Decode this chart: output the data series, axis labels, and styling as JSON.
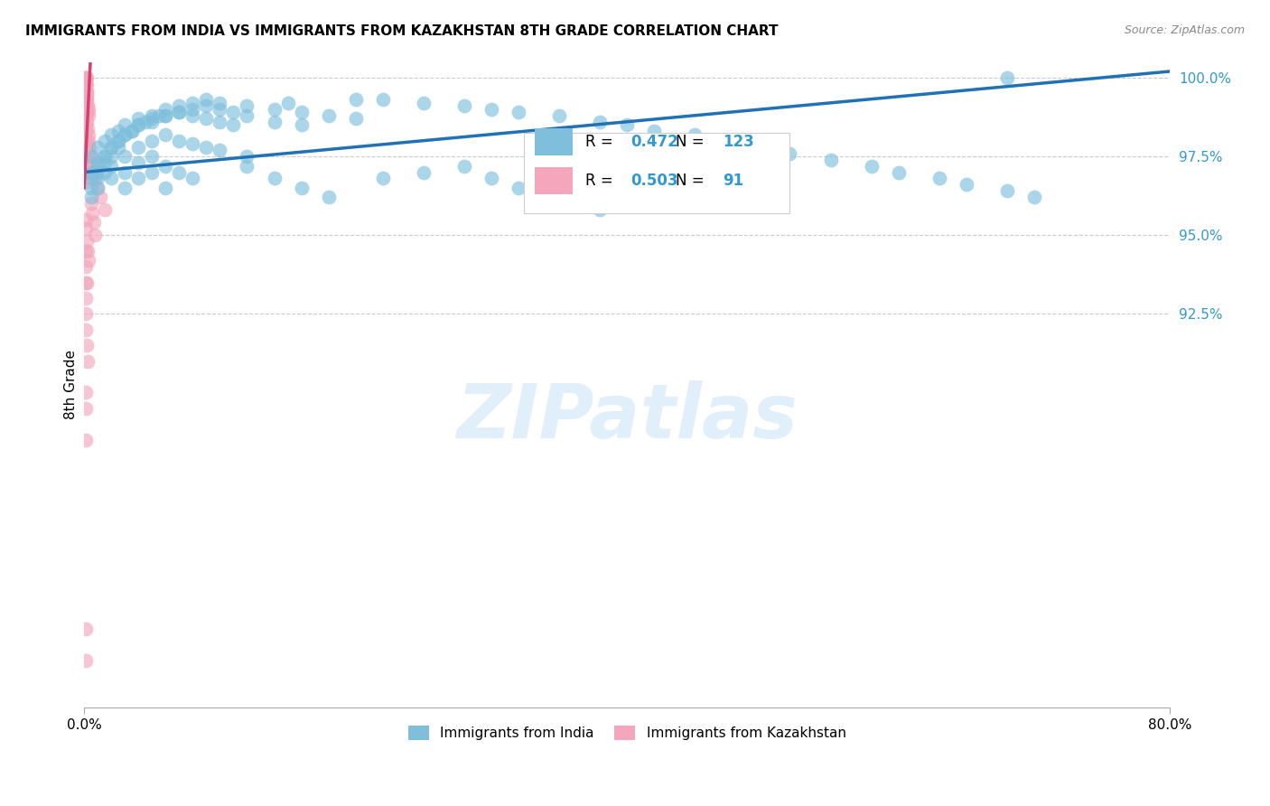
{
  "title": "IMMIGRANTS FROM INDIA VS IMMIGRANTS FROM KAZAKHSTAN 8TH GRADE CORRELATION CHART",
  "source": "Source: ZipAtlas.com",
  "ylabel": "8th Grade",
  "xlim": [
    0.0,
    80.0
  ],
  "ylim": [
    80.0,
    100.5
  ],
  "y_ticks": [
    92.5,
    95.0,
    97.5,
    100.0
  ],
  "y_tick_labels": [
    "92.5%",
    "95.0%",
    "97.5%",
    "100.0%"
  ],
  "x_ticks": [
    0.0,
    80.0
  ],
  "x_tick_labels": [
    "0.0%",
    "80.0%"
  ],
  "legend_india_R": "0.472",
  "legend_india_N": "123",
  "legend_kaz_R": "0.503",
  "legend_kaz_N": "91",
  "color_india": "#7fbfdc",
  "color_kaz": "#f4a7bc",
  "color_india_line": "#2171b5",
  "color_kaz_line": "#d63f6e",
  "watermark": "ZIPatlas",
  "india_x": [
    0.5,
    1.0,
    1.5,
    2.0,
    2.5,
    3.0,
    4.0,
    5.0,
    6.0,
    7.0,
    8.0,
    9.0,
    10.0,
    12.0,
    14.0,
    16.0,
    18.0,
    20.0,
    1.0,
    1.5,
    2.0,
    2.5,
    3.0,
    3.5,
    4.0,
    5.0,
    6.0,
    7.0,
    8.0,
    9.0,
    10.0,
    11.0,
    12.0,
    14.0,
    16.0,
    0.5,
    1.0,
    1.5,
    2.0,
    2.5,
    3.0,
    3.5,
    4.0,
    4.5,
    5.0,
    5.5,
    6.0,
    7.0,
    8.0,
    9.0,
    10.0,
    11.0,
    0.5,
    1.0,
    1.5,
    2.0,
    2.5,
    3.0,
    4.0,
    5.0,
    6.0,
    7.0,
    8.0,
    9.0,
    10.0,
    12.0,
    0.5,
    1.0,
    1.5,
    2.0,
    3.0,
    4.0,
    5.0,
    6.0,
    7.0,
    8.0,
    0.5,
    1.0,
    2.0,
    3.0,
    4.0,
    5.0,
    6.0,
    15.0,
    20.0,
    22.0,
    25.0,
    28.0,
    30.0,
    32.0,
    35.0,
    38.0,
    40.0,
    42.0,
    45.0,
    48.0,
    50.0,
    52.0,
    55.0,
    58.0,
    60.0,
    63.0,
    65.0,
    68.0,
    70.0,
    22.0,
    25.0,
    28.0,
    30.0,
    32.0,
    35.0,
    38.0,
    12.0,
    14.0,
    16.0,
    18.0,
    68.0
  ],
  "india_y": [
    97.5,
    97.8,
    98.0,
    98.2,
    98.3,
    98.5,
    98.7,
    98.8,
    99.0,
    99.1,
    99.2,
    99.3,
    99.2,
    99.1,
    99.0,
    98.9,
    98.8,
    98.7,
    97.2,
    97.5,
    97.8,
    98.0,
    98.2,
    98.3,
    98.5,
    98.6,
    98.8,
    98.9,
    99.0,
    99.1,
    99.0,
    98.9,
    98.8,
    98.6,
    98.5,
    97.0,
    97.3,
    97.5,
    97.8,
    98.0,
    98.2,
    98.3,
    98.5,
    98.6,
    98.7,
    98.8,
    98.8,
    98.9,
    98.8,
    98.7,
    98.6,
    98.5,
    96.8,
    97.0,
    97.3,
    97.5,
    97.8,
    97.5,
    97.8,
    98.0,
    98.2,
    98.0,
    97.9,
    97.8,
    97.7,
    97.5,
    96.5,
    96.8,
    97.0,
    97.2,
    97.0,
    97.3,
    97.5,
    97.2,
    97.0,
    96.8,
    96.2,
    96.5,
    96.8,
    96.5,
    96.8,
    97.0,
    96.5,
    99.2,
    99.3,
    99.3,
    99.2,
    99.1,
    99.0,
    98.9,
    98.8,
    98.6,
    98.5,
    98.3,
    98.2,
    98.0,
    97.8,
    97.6,
    97.4,
    97.2,
    97.0,
    96.8,
    96.6,
    96.4,
    96.2,
    96.8,
    97.0,
    97.2,
    96.8,
    96.5,
    96.2,
    95.8,
    97.2,
    96.8,
    96.5,
    96.2,
    100.0
  ],
  "kaz_x": [
    0.1,
    0.1,
    0.1,
    0.1,
    0.15,
    0.15,
    0.15,
    0.2,
    0.2,
    0.2,
    0.2,
    0.2,
    0.1,
    0.1,
    0.1,
    0.15,
    0.15,
    0.2,
    0.2,
    0.25,
    0.25,
    0.3,
    0.3,
    0.1,
    0.1,
    0.15,
    0.2,
    0.25,
    0.3,
    0.35,
    0.4,
    0.1,
    0.15,
    0.2,
    0.25,
    0.3,
    0.35,
    0.1,
    0.15,
    0.2,
    0.25,
    0.1,
    0.15,
    0.2,
    0.5,
    0.6,
    0.7,
    0.8,
    1.0,
    1.2,
    1.5,
    0.5,
    0.6,
    0.7,
    0.8,
    0.1,
    0.15,
    0.2,
    0.25,
    0.3,
    0.1,
    0.15,
    0.2,
    0.1,
    0.15,
    0.1,
    0.15,
    0.2,
    0.25,
    0.1,
    0.15,
    0.1,
    0.1,
    0.1
  ],
  "kaz_y": [
    100.0,
    100.0,
    99.8,
    99.6,
    100.0,
    99.8,
    99.6,
    100.0,
    99.8,
    99.6,
    99.4,
    99.2,
    99.5,
    99.3,
    99.1,
    99.5,
    99.3,
    99.5,
    99.3,
    99.1,
    98.9,
    99.0,
    98.8,
    99.0,
    98.8,
    98.8,
    98.6,
    98.4,
    98.2,
    98.0,
    97.8,
    98.5,
    98.3,
    98.0,
    97.8,
    97.5,
    97.3,
    97.8,
    97.5,
    97.2,
    97.0,
    97.3,
    97.0,
    96.7,
    97.5,
    97.3,
    97.0,
    96.8,
    96.5,
    96.2,
    95.8,
    96.0,
    95.7,
    95.4,
    95.0,
    95.5,
    95.2,
    94.8,
    94.5,
    94.2,
    94.5,
    94.0,
    93.5,
    93.5,
    93.0,
    92.5,
    92.0,
    91.5,
    91.0,
    90.0,
    89.5,
    88.5,
    82.5,
    81.5
  ]
}
